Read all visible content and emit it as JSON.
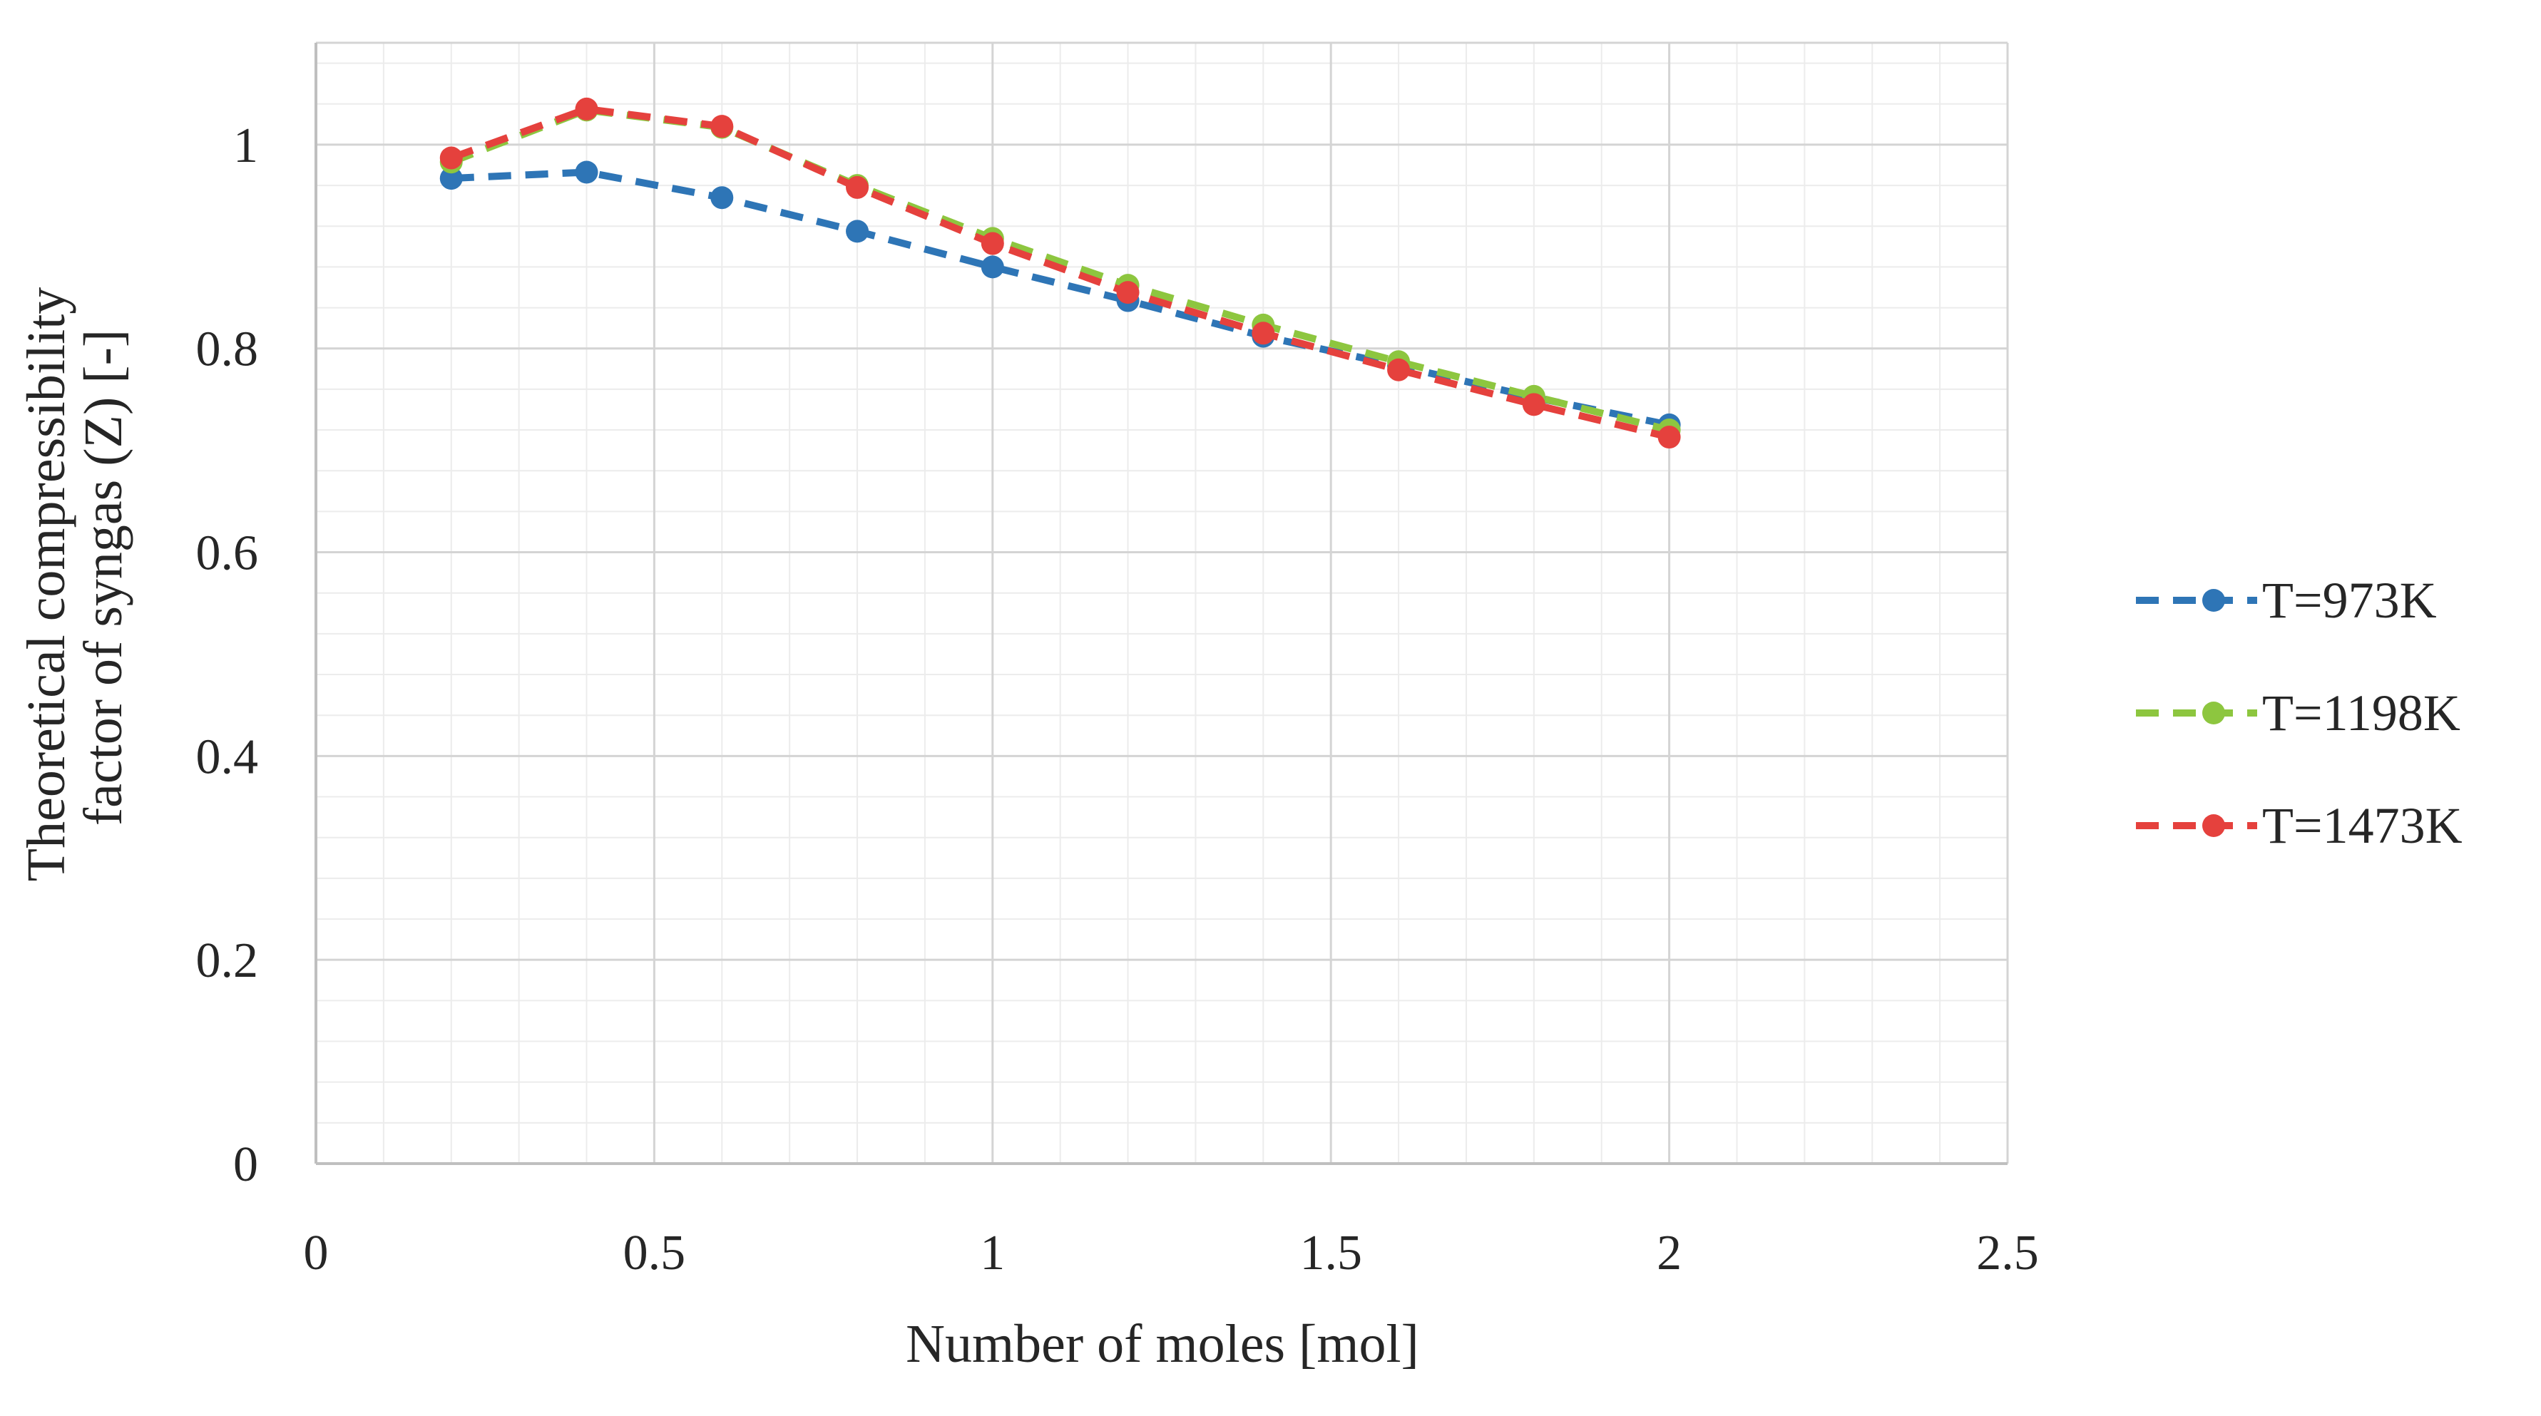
{
  "chart_data": {
    "type": "line",
    "title": "",
    "xlabel": "Number of moles [mol]",
    "ylabel_line1": "Theoretical compressibility",
    "ylabel_line2": "factor of syngas (Z) [-]",
    "xlim": [
      0,
      2.5
    ],
    "ylim": [
      0,
      1.1
    ],
    "xticks": [
      0,
      0.5,
      1,
      1.5,
      2,
      2.5
    ],
    "xtick_labels": [
      "0",
      "0.5",
      "1",
      "1.5",
      "2",
      "2.5"
    ],
    "yticks": [
      0,
      0.2,
      0.4,
      0.6,
      0.8,
      1
    ],
    "ytick_labels": [
      "0",
      "0.2",
      "0.4",
      "0.6",
      "0.8",
      "1"
    ],
    "grid": true,
    "legend_position": "right",
    "x": [
      0.2,
      0.4,
      0.6,
      0.8,
      1.0,
      1.2,
      1.4,
      1.6,
      1.8,
      2.0
    ],
    "series": [
      {
        "name": "T=973K",
        "color": "#2E75B6",
        "values": [
          0.967,
          0.973,
          0.948,
          0.915,
          0.88,
          0.847,
          0.812,
          0.783,
          0.752,
          0.725
        ]
      },
      {
        "name": "T=1198K",
        "color": "#8DC63F",
        "values": [
          0.983,
          1.034,
          1.017,
          0.96,
          0.908,
          0.862,
          0.823,
          0.787,
          0.753,
          0.72
        ]
      },
      {
        "name": "T=1473K",
        "color": "#E5413D",
        "values": [
          0.987,
          1.035,
          1.018,
          0.958,
          0.903,
          0.855,
          0.815,
          0.779,
          0.745,
          0.713
        ]
      }
    ]
  }
}
